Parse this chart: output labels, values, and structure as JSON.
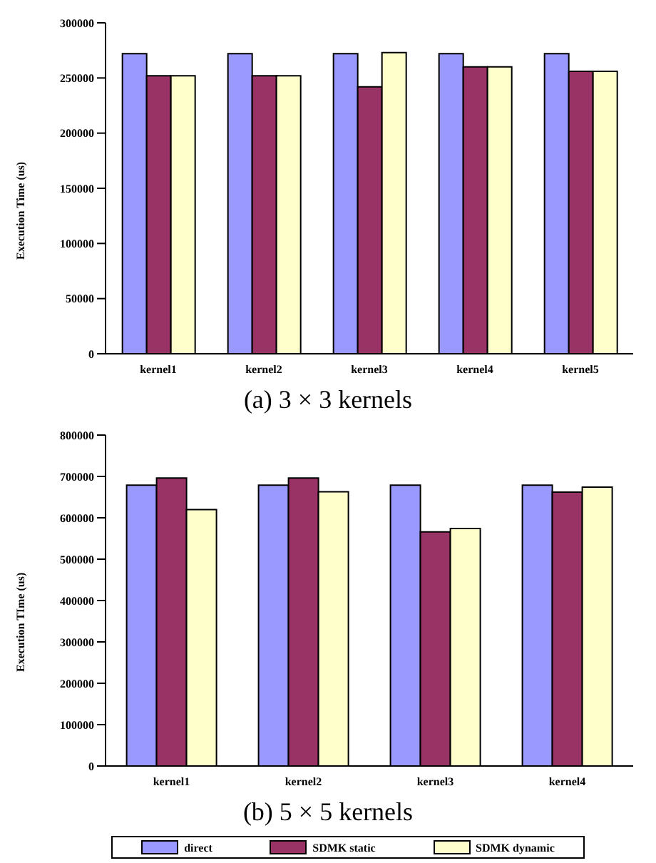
{
  "chart_data": [
    {
      "type": "bar",
      "title": "(a) 3 × 3 kernels",
      "ylabel": "Execution Time (us)",
      "categories": [
        "kernel1",
        "kernel2",
        "kernel3",
        "kernel4",
        "kernel5"
      ],
      "ylim": [
        0,
        300000
      ],
      "yticks": [
        0,
        50000,
        100000,
        150000,
        200000,
        250000,
        300000
      ],
      "grid": false,
      "legend": false,
      "series": [
        {
          "color": "#9999ff",
          "values": [
            272000,
            272000,
            272000,
            272000,
            272000
          ]
        },
        {
          "color": "#993366",
          "values": [
            252000,
            252000,
            242000,
            260000,
            256000
          ]
        },
        {
          "color": "#ffffcc",
          "values": [
            252000,
            252000,
            273000,
            260000,
            256000
          ]
        }
      ]
    },
    {
      "type": "bar",
      "title": "(b) 5 × 5 kernels",
      "ylabel": "Execution TIme (us)",
      "categories": [
        "kernel1",
        "kernel2",
        "kernel3",
        "kernel4"
      ],
      "ylim": [
        0,
        800000
      ],
      "yticks": [
        0,
        100000,
        200000,
        300000,
        400000,
        500000,
        600000,
        700000,
        800000
      ],
      "grid": false,
      "legend": "bottom",
      "series": [
        {
          "name": "direct",
          "color": "#9999ff",
          "values": [
            679000,
            679000,
            679000,
            679000
          ]
        },
        {
          "name": "SDMK static",
          "color": "#993366",
          "values": [
            696000,
            696000,
            566000,
            662000
          ]
        },
        {
          "name": "SDMK dynamic",
          "color": "#ffffcc",
          "values": [
            620000,
            663000,
            574000,
            674000
          ]
        }
      ]
    }
  ]
}
